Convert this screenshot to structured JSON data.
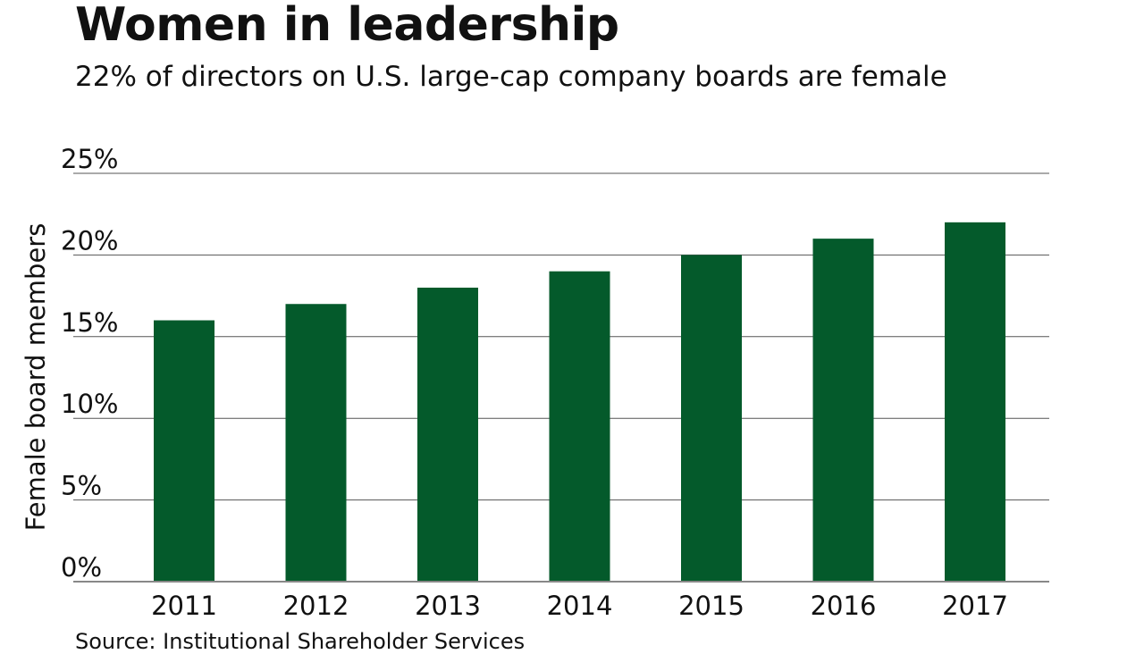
{
  "chart_data": {
    "type": "bar",
    "title": "Women in leadership",
    "subtitle": "22% of directors on U.S. large-cap company boards are female",
    "categories": [
      "2011",
      "2012",
      "2013",
      "2014",
      "2015",
      "2016",
      "2017"
    ],
    "values": [
      16,
      17,
      18,
      19,
      20,
      21,
      22
    ],
    "xlabel": "",
    "ylabel": "Female board members",
    "ylim": [
      0,
      25
    ],
    "yticks": [
      0,
      5,
      10,
      15,
      20,
      25
    ],
    "ytick_labels": [
      "0%",
      "5%",
      "10%",
      "15%",
      "20%",
      "25%"
    ],
    "grid": true,
    "bar_color": "#045a2b",
    "source": "Source: Institutional Shareholder Services"
  }
}
